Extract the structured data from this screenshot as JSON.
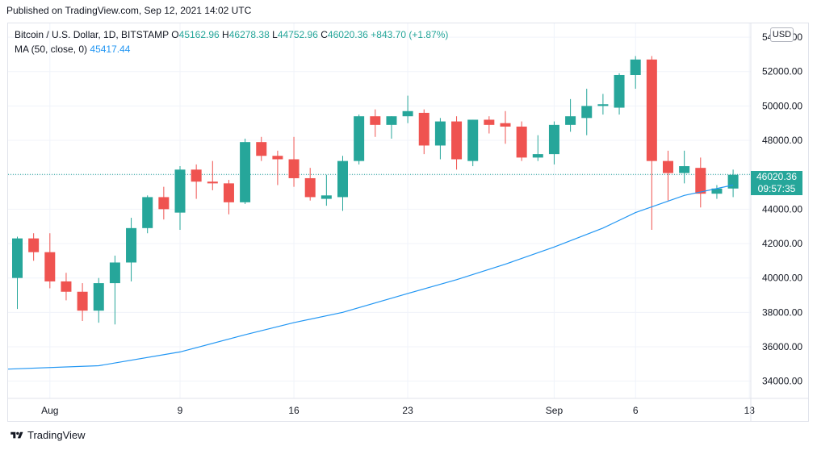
{
  "published": "Published on TradingView.com, Sep 12, 2021 14:02 UTC",
  "legend": {
    "symbol": "Bitcoin / U.S. Dollar, 1D, BITSTAMP",
    "o_label": "O",
    "o_value": "45162.96",
    "h_label": "H",
    "h_value": "46278.38",
    "l_label": "L",
    "l_value": "44752.96",
    "c_label": "C",
    "c_value": "46020.36",
    "change": "+843.70 (+1.87%)",
    "ma_label": "MA (50, close, 0)",
    "ma_value": "45417.44"
  },
  "currency_button": "USD",
  "price_tag": {
    "price": "46020.36",
    "countdown": "09:57:35"
  },
  "footer": {
    "brand": "TradingView",
    "logo_icon": "tradingview-logo-icon"
  },
  "colors": {
    "up": "#26a69a",
    "down": "#ef5350",
    "ma": "#2196f3",
    "grid": "#f0f3fa"
  },
  "chart_data": {
    "type": "candlestick",
    "y_ticks": [
      "54000.00",
      "52000.00",
      "50000.00",
      "48000.00",
      "46000.00",
      "44000.00",
      "42000.00",
      "40000.00",
      "38000.00",
      "36000.00",
      "34000.00"
    ],
    "ylim": [
      33000,
      54800
    ],
    "x_ticks": [
      {
        "label": "Aug",
        "index": 2
      },
      {
        "label": "9",
        "index": 10
      },
      {
        "label": "16",
        "index": 17
      },
      {
        "label": "23",
        "index": 24
      },
      {
        "label": "Sep",
        "index": 33
      },
      {
        "label": "6",
        "index": 38
      },
      {
        "label": "13",
        "index": 45
      }
    ],
    "candles": [
      {
        "o": 40000,
        "h": 42400,
        "l": 38200,
        "c": 42300
      },
      {
        "o": 42300,
        "h": 42600,
        "l": 41000,
        "c": 41500
      },
      {
        "o": 41500,
        "h": 42600,
        "l": 39400,
        "c": 39800
      },
      {
        "o": 39800,
        "h": 40300,
        "l": 38700,
        "c": 39200
      },
      {
        "o": 39200,
        "h": 39700,
        "l": 37500,
        "c": 38100
      },
      {
        "o": 38100,
        "h": 40000,
        "l": 37400,
        "c": 39700
      },
      {
        "o": 39700,
        "h": 41300,
        "l": 37300,
        "c": 40900
      },
      {
        "o": 40900,
        "h": 43500,
        "l": 39800,
        "c": 42900
      },
      {
        "o": 42900,
        "h": 44800,
        "l": 42600,
        "c": 44700
      },
      {
        "o": 44700,
        "h": 45300,
        "l": 43400,
        "c": 44000
      },
      {
        "o": 43800,
        "h": 46500,
        "l": 42800,
        "c": 46300
      },
      {
        "o": 46300,
        "h": 46600,
        "l": 44600,
        "c": 45600
      },
      {
        "o": 45600,
        "h": 46800,
        "l": 45100,
        "c": 45500
      },
      {
        "o": 45500,
        "h": 45700,
        "l": 43700,
        "c": 44400
      },
      {
        "o": 44400,
        "h": 48100,
        "l": 44300,
        "c": 47900
      },
      {
        "o": 47900,
        "h": 48200,
        "l": 46800,
        "c": 47100
      },
      {
        "o": 47100,
        "h": 47400,
        "l": 45400,
        "c": 46900
      },
      {
        "o": 46900,
        "h": 48200,
        "l": 45300,
        "c": 45800
      },
      {
        "o": 45800,
        "h": 46400,
        "l": 44500,
        "c": 44700
      },
      {
        "o": 44600,
        "h": 46000,
        "l": 44200,
        "c": 44800
      },
      {
        "o": 44700,
        "h": 47100,
        "l": 43900,
        "c": 46800
      },
      {
        "o": 46800,
        "h": 49500,
        "l": 46600,
        "c": 49400
      },
      {
        "o": 49400,
        "h": 49800,
        "l": 48200,
        "c": 48900
      },
      {
        "o": 48900,
        "h": 49400,
        "l": 48100,
        "c": 49400
      },
      {
        "o": 49400,
        "h": 50600,
        "l": 49000,
        "c": 49700
      },
      {
        "o": 49600,
        "h": 49800,
        "l": 47200,
        "c": 47700
      },
      {
        "o": 47700,
        "h": 49300,
        "l": 46900,
        "c": 49100
      },
      {
        "o": 49100,
        "h": 49400,
        "l": 46300,
        "c": 46900
      },
      {
        "o": 46800,
        "h": 49200,
        "l": 46500,
        "c": 49200
      },
      {
        "o": 49200,
        "h": 49400,
        "l": 48400,
        "c": 48900
      },
      {
        "o": 49000,
        "h": 49700,
        "l": 47800,
        "c": 48800
      },
      {
        "o": 48800,
        "h": 49100,
        "l": 46800,
        "c": 47000
      },
      {
        "o": 47000,
        "h": 48300,
        "l": 46800,
        "c": 47200
      },
      {
        "o": 47200,
        "h": 49100,
        "l": 46600,
        "c": 48900
      },
      {
        "o": 48900,
        "h": 50400,
        "l": 48500,
        "c": 49400
      },
      {
        "o": 49300,
        "h": 51000,
        "l": 48300,
        "c": 50000
      },
      {
        "o": 50000,
        "h": 50700,
        "l": 49500,
        "c": 50100
      },
      {
        "o": 49900,
        "h": 51900,
        "l": 49500,
        "c": 51800
      },
      {
        "o": 51800,
        "h": 52900,
        "l": 51000,
        "c": 52700
      },
      {
        "o": 52700,
        "h": 52900,
        "l": 42800,
        "c": 46800
      },
      {
        "o": 46800,
        "h": 47400,
        "l": 44500,
        "c": 46100
      },
      {
        "o": 46100,
        "h": 47400,
        "l": 45500,
        "c": 46500
      },
      {
        "o": 46400,
        "h": 47000,
        "l": 44100,
        "c": 44900
      },
      {
        "o": 44900,
        "h": 45400,
        "l": 44600,
        "c": 45200
      },
      {
        "o": 45200,
        "h": 46300,
        "l": 44700,
        "c": 46000
      }
    ],
    "ma_x": [
      0,
      5,
      10,
      14,
      17,
      20,
      24,
      27,
      30,
      33,
      36,
      38,
      41,
      44
    ],
    "ma_y": [
      34700,
      34900,
      35700,
      36700,
      37400,
      38000,
      39100,
      39900,
      40800,
      41800,
      42900,
      43800,
      44800,
      45400
    ],
    "last_price": 46020.36
  }
}
